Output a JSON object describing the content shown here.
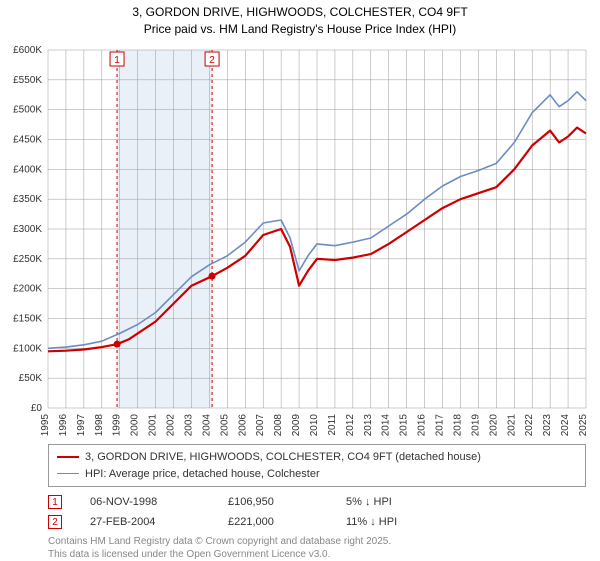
{
  "title_line1": "3, GORDON DRIVE, HIGHWOODS, COLCHESTER, CO4 9FT",
  "title_line2": "Price paid vs. HM Land Registry's House Price Index (HPI)",
  "chart": {
    "type": "line",
    "background_color": "#ffffff",
    "grid_color": "#999999",
    "axis_color": "#000000",
    "font_size_axis": 10,
    "y": {
      "min": 0,
      "max": 600000,
      "tick_step": 50000,
      "format": "£K",
      "labels": [
        "£0",
        "£50K",
        "£100K",
        "£150K",
        "£200K",
        "£250K",
        "£300K",
        "£350K",
        "£400K",
        "£450K",
        "£500K",
        "£550K",
        "£600K"
      ]
    },
    "x": {
      "min": 1995,
      "max": 2025,
      "tick_step": 1,
      "labels": [
        "1995",
        "1996",
        "1997",
        "1998",
        "1999",
        "2000",
        "2001",
        "2002",
        "2003",
        "2004",
        "2005",
        "2006",
        "2007",
        "2008",
        "2009",
        "2010",
        "2011",
        "2012",
        "2013",
        "2014",
        "2015",
        "2016",
        "2017",
        "2018",
        "2019",
        "2020",
        "2021",
        "2022",
        "2023",
        "2024",
        "2025"
      ]
    },
    "shaded_band": {
      "x_from": 1998.85,
      "x_to": 2004.15,
      "fill": "#e8eef7",
      "opacity": 0.9
    },
    "marker_lines": [
      {
        "label": "1",
        "x": 1998.85,
        "color": "#cc0000",
        "dash": "3,3"
      },
      {
        "label": "2",
        "x": 2004.15,
        "color": "#cc0000",
        "dash": "3,3"
      }
    ],
    "marker_points": [
      {
        "x": 1998.85,
        "y": 106950,
        "color": "#cc0000"
      },
      {
        "x": 2004.15,
        "y": 221000,
        "color": "#cc0000"
      }
    ],
    "series": [
      {
        "name": "3, GORDON DRIVE, HIGHWOODS, COLCHESTER, CO4 9FT (detached house)",
        "color": "#cc0000",
        "line_width": 2.2,
        "data": [
          [
            1995,
            95000
          ],
          [
            1996,
            96000
          ],
          [
            1997,
            98000
          ],
          [
            1998,
            102000
          ],
          [
            1998.85,
            106950
          ],
          [
            1999.5,
            115000
          ],
          [
            2000,
            125000
          ],
          [
            2001,
            145000
          ],
          [
            2002,
            175000
          ],
          [
            2003,
            205000
          ],
          [
            2004.15,
            221000
          ],
          [
            2005,
            235000
          ],
          [
            2006,
            255000
          ],
          [
            2007,
            290000
          ],
          [
            2008,
            300000
          ],
          [
            2008.5,
            270000
          ],
          [
            2009,
            205000
          ],
          [
            2009.5,
            230000
          ],
          [
            2010,
            250000
          ],
          [
            2011,
            248000
          ],
          [
            2012,
            252000
          ],
          [
            2013,
            258000
          ],
          [
            2014,
            275000
          ],
          [
            2015,
            295000
          ],
          [
            2016,
            315000
          ],
          [
            2017,
            335000
          ],
          [
            2018,
            350000
          ],
          [
            2019,
            360000
          ],
          [
            2020,
            370000
          ],
          [
            2021,
            400000
          ],
          [
            2022,
            440000
          ],
          [
            2023,
            465000
          ],
          [
            2023.5,
            445000
          ],
          [
            2024,
            455000
          ],
          [
            2024.5,
            470000
          ],
          [
            2025,
            460000
          ]
        ]
      },
      {
        "name": "HPI: Average price, detached house, Colchester",
        "color": "#6b8cc4",
        "line_width": 1.6,
        "data": [
          [
            1995,
            100000
          ],
          [
            1996,
            102000
          ],
          [
            1997,
            106000
          ],
          [
            1998,
            112000
          ],
          [
            1999,
            125000
          ],
          [
            2000,
            140000
          ],
          [
            2001,
            160000
          ],
          [
            2002,
            190000
          ],
          [
            2003,
            220000
          ],
          [
            2004,
            240000
          ],
          [
            2005,
            255000
          ],
          [
            2006,
            278000
          ],
          [
            2007,
            310000
          ],
          [
            2008,
            315000
          ],
          [
            2008.5,
            285000
          ],
          [
            2009,
            230000
          ],
          [
            2009.5,
            255000
          ],
          [
            2010,
            275000
          ],
          [
            2011,
            272000
          ],
          [
            2012,
            278000
          ],
          [
            2013,
            285000
          ],
          [
            2014,
            305000
          ],
          [
            2015,
            325000
          ],
          [
            2016,
            350000
          ],
          [
            2017,
            372000
          ],
          [
            2018,
            388000
          ],
          [
            2019,
            398000
          ],
          [
            2020,
            410000
          ],
          [
            2021,
            445000
          ],
          [
            2022,
            495000
          ],
          [
            2023,
            525000
          ],
          [
            2023.5,
            505000
          ],
          [
            2024,
            515000
          ],
          [
            2024.5,
            530000
          ],
          [
            2025,
            515000
          ]
        ]
      }
    ]
  },
  "legend": {
    "series_label_0": "3, GORDON DRIVE, HIGHWOODS, COLCHESTER, CO4 9FT (detached house)",
    "series_label_1": "HPI: Average price, detached house, Colchester"
  },
  "markers_table": [
    {
      "num": "1",
      "date": "06-NOV-1998",
      "price": "£106,950",
      "delta": "5% ↓ HPI"
    },
    {
      "num": "2",
      "date": "27-FEB-2004",
      "price": "£221,000",
      "delta": "11% ↓ HPI"
    }
  ],
  "footnote_line1": "Contains HM Land Registry data © Crown copyright and database right 2025.",
  "footnote_line2": "This data is licensed under the Open Government Licence v3.0."
}
